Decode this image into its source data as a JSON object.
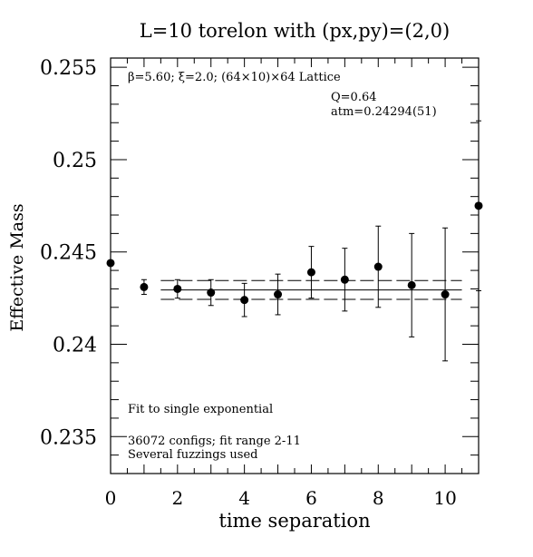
{
  "chart_data": {
    "type": "scatter",
    "title": "L=10 torelon with (px,py)=(2,0)",
    "xlabel": "time separation",
    "ylabel": "Effective Mass",
    "xlim": [
      0,
      11
    ],
    "ylim": [
      0.233,
      0.2555
    ],
    "xticks": [
      "0",
      "2",
      "4",
      "6",
      "8",
      "10"
    ],
    "yticks": [
      "0.235",
      "0.24",
      "0.245",
      "0.25",
      "0.255"
    ],
    "annotations": {
      "lattice": "β=5.60; ξ=2.0; (64×10)×64 Lattice",
      "q": "Q=0.64",
      "mass": "atm=0.24294(51)",
      "fit": "Fit to single exponential",
      "configs": "36072 configs; fit range 2-11",
      "fuzz": "Several fuzzings used"
    },
    "points": [
      {
        "x": 0,
        "y": 0.2444,
        "err": 0
      },
      {
        "x": 1,
        "y": 0.2431,
        "err": 0.0004
      },
      {
        "x": 2,
        "y": 0.243,
        "err": 0.0005
      },
      {
        "x": 3,
        "y": 0.2428,
        "err": 0.0007
      },
      {
        "x": 4,
        "y": 0.2424,
        "err": 0.0009
      },
      {
        "x": 5,
        "y": 0.2427,
        "err": 0.0011
      },
      {
        "x": 6,
        "y": 0.2439,
        "err": 0.0014
      },
      {
        "x": 7,
        "y": 0.2435,
        "err": 0.0017
      },
      {
        "x": 8,
        "y": 0.2442,
        "err": 0.0022
      },
      {
        "x": 9,
        "y": 0.2432,
        "err": 0.0028
      },
      {
        "x": 10,
        "y": 0.2427,
        "err": 0.0036
      },
      {
        "x": 11,
        "y": 0.2475,
        "err": 0.0046
      }
    ],
    "fit": {
      "value": 0.24294,
      "error": 0.00051,
      "x_range": [
        1.5,
        10.5
      ]
    }
  }
}
